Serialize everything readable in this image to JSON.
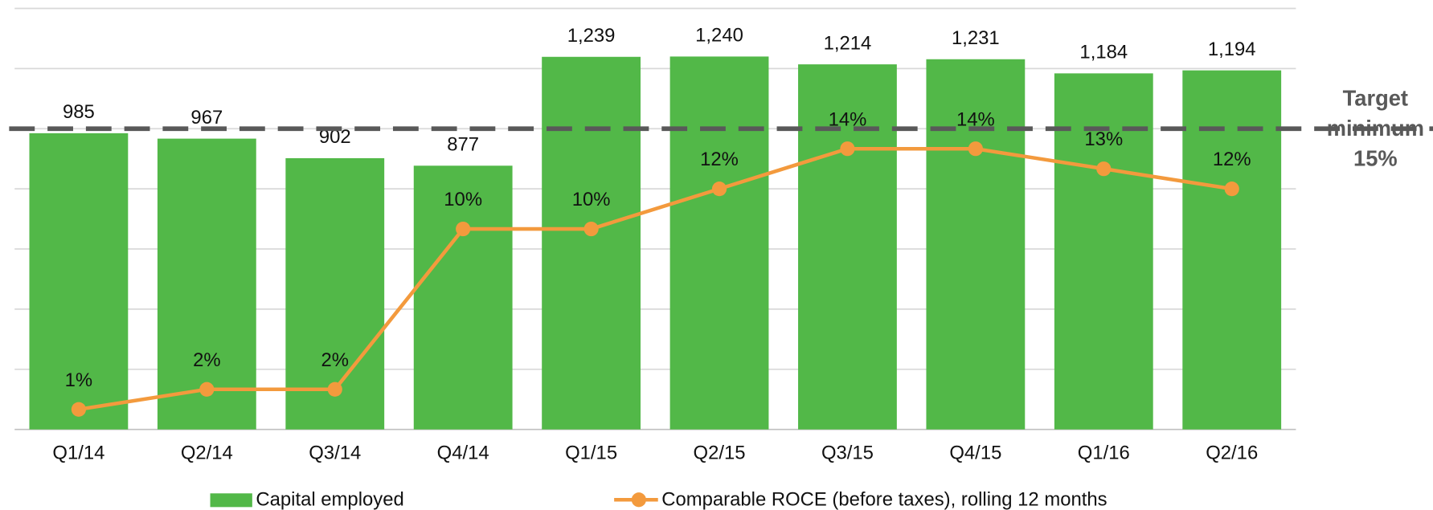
{
  "chart_data": {
    "type": "bar_line",
    "categories": [
      "Q1/14",
      "Q2/14",
      "Q3/14",
      "Q4/14",
      "Q1/15",
      "Q2/15",
      "Q3/15",
      "Q4/15",
      "Q1/16",
      "Q2/16"
    ],
    "series": [
      {
        "name": "Capital employed",
        "color": "#52b848",
        "type": "bar",
        "values": [
          985,
          967,
          902,
          877,
          1239,
          1240,
          1214,
          1231,
          1184,
          1194
        ],
        "value_labels": [
          "985",
          "967",
          "902",
          "877",
          "1,239",
          "1,240",
          "1,214",
          "1,231",
          "1,184",
          "1,194"
        ]
      },
      {
        "name": "Comparable ROCE (before taxes), rolling 12 months",
        "color": "#f39a3d",
        "type": "line",
        "axis": "y2",
        "values": [
          1,
          2,
          2,
          10,
          10,
          12,
          14,
          14,
          13,
          12
        ],
        "value_labels": [
          "1%",
          "2%",
          "2%",
          "10%",
          "10%",
          "12%",
          "14%",
          "14%",
          "13%",
          "12%"
        ]
      }
    ],
    "ylim": [
      0,
      1400
    ],
    "yticks": [
      0,
      200,
      400,
      600,
      800,
      1000,
      1200,
      1400
    ],
    "y2lim": [
      0,
      21
    ],
    "grid": true,
    "target": {
      "value": 15,
      "label": [
        "Target",
        "minimum",
        "15%"
      ],
      "color": "#595959"
    },
    "legend": "bottom"
  }
}
